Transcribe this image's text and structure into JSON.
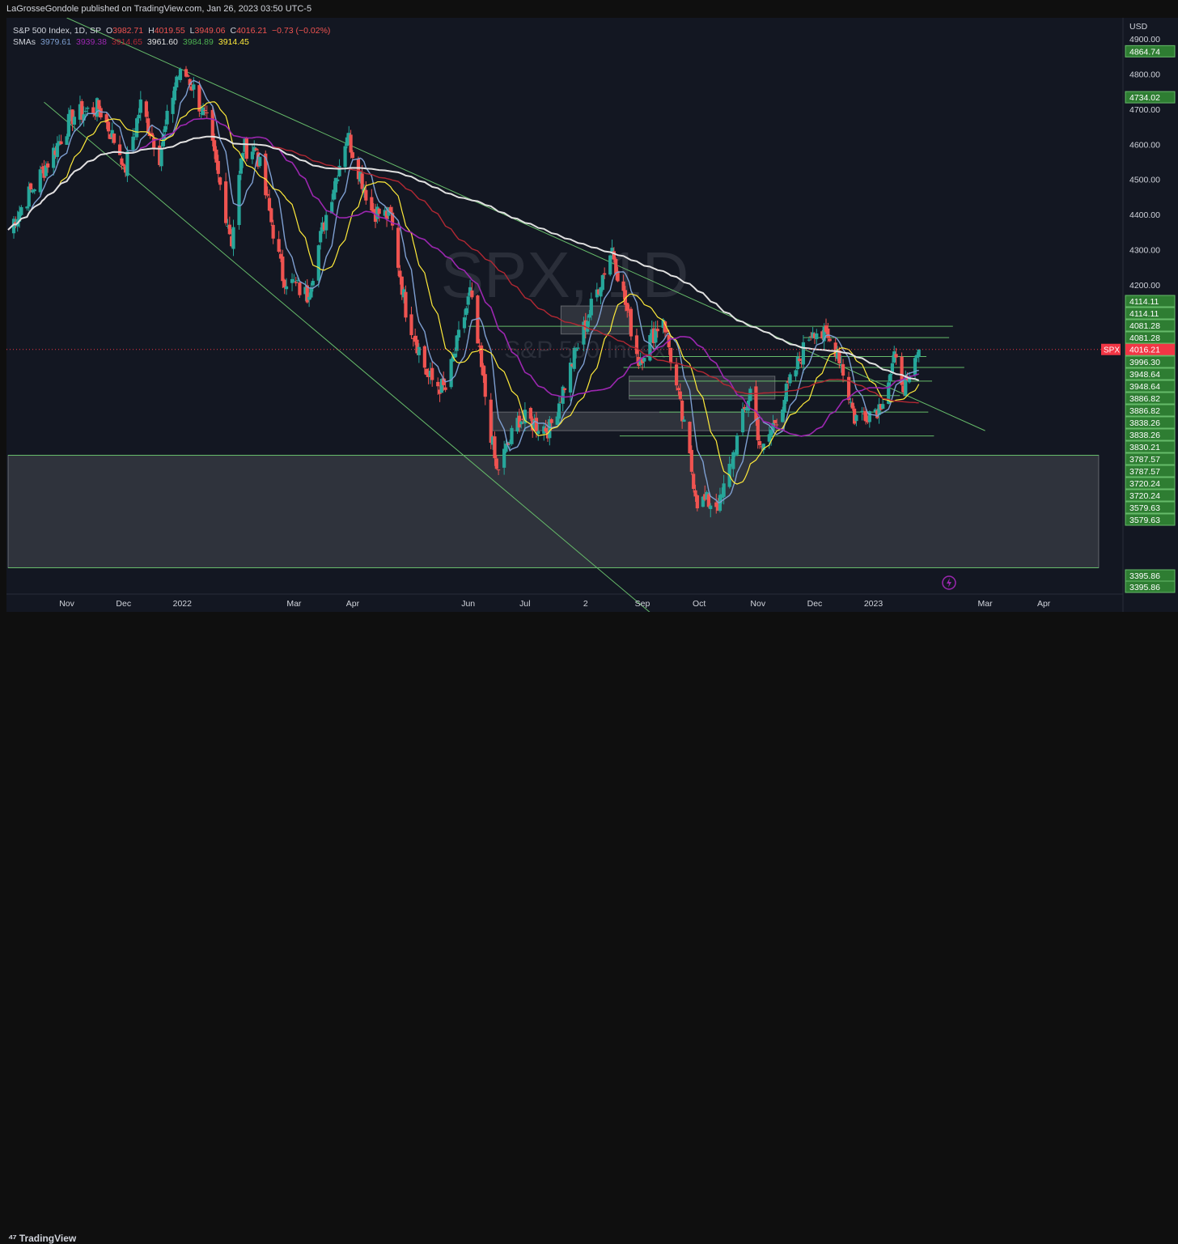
{
  "header": {
    "published": "LaGrosseGondole published on TradingView.com, Jan 26, 2023 03:50 UTC-5"
  },
  "legend": {
    "symbol": "S&P 500 Index, 1D, SP",
    "o_label": "O",
    "o": "3982.71",
    "h_label": "H",
    "h": "4019.55",
    "l_label": "L",
    "l": "3949.06",
    "c_label": "C",
    "c": "4016.21",
    "change": "−0.73 (−0.02%)",
    "sma_label": "SMAs",
    "smas": [
      "3979.61",
      "3939.38",
      "3914.65",
      "3961.60",
      "3984.89",
      "3914.45"
    ]
  },
  "watermark": {
    "big": "SPX, 1D",
    "small": "S&P 500 Index"
  },
  "footer": {
    "brand": "TradingView"
  },
  "colors": {
    "bg": "#131722",
    "up": "#26a69a",
    "down": "#ef5350",
    "sma1": "#7e9fd1",
    "sma2": "#9c27b0",
    "sma3": "#b22833",
    "sma4": "#e0e0e0",
    "sma5": "#4caf50",
    "sma6": "#ffeb3b",
    "level": "#66bb6a",
    "price_tag": "#f23645"
  },
  "chart_data": {
    "type": "candlestick",
    "currency": "USD",
    "x_labels": [
      "Nov",
      "Dec",
      "2022",
      "Mar",
      "Apr",
      "Jun",
      "Jul",
      "2",
      "Sep",
      "Oct",
      "Nov",
      "Dec",
      "2023",
      "Mar",
      "Apr"
    ],
    "y_ticks": [
      4900,
      4800,
      4700,
      4600,
      4500,
      4400,
      4300,
      4200
    ],
    "y_range": [
      3320,
      4960
    ],
    "current_price": {
      "label": "SPX",
      "value": "4016.21"
    },
    "levels": [
      "4864.74",
      "4734.02",
      "4114.11",
      "4114.11",
      "4081.28",
      "4081.28",
      "3996.30",
      "3996.30",
      "3948.64",
      "3948.64",
      "3886.82",
      "3886.82",
      "3838.26",
      "3838.26",
      "3830.21",
      "3787.57",
      "3787.57",
      "3720.24",
      "3720.24",
      "3579.63",
      "3579.63",
      "3395.86",
      "3395.86"
    ],
    "key_points": [
      {
        "d": "Oct 1 2021",
        "c": 4357
      },
      {
        "d": "Oct 20 2021",
        "c": 4530
      },
      {
        "d": "Nov 4 2021",
        "c": 4680
      },
      {
        "d": "Nov 18 2021",
        "c": 4704
      },
      {
        "d": "Nov 30 2021",
        "c": 4567
      },
      {
        "d": "Dec 1 2021",
        "c": 4513
      },
      {
        "d": "Dec 10 2021",
        "c": 4712
      },
      {
        "d": "Dec 20 2021",
        "c": 4568
      },
      {
        "d": "Dec 29 2021",
        "c": 4793
      },
      {
        "d": "Jan 4 2022",
        "c": 4796
      },
      {
        "d": "Jan 14 2022",
        "c": 4662
      },
      {
        "d": "Jan 27 2022",
        "c": 4327
      },
      {
        "d": "Feb 2 2022",
        "c": 4589
      },
      {
        "d": "Feb 9 2022",
        "c": 4587
      },
      {
        "d": "Feb 23 2022",
        "c": 4225
      },
      {
        "d": "Mar 8 2022",
        "c": 4170
      },
      {
        "d": "Mar 16 2022",
        "c": 4357
      },
      {
        "d": "Mar 29 2022",
        "c": 4632
      },
      {
        "d": "Apr 11 2022",
        "c": 4413
      },
      {
        "d": "Apr 21 2022",
        "c": 4393
      },
      {
        "d": "Apr 29 2022",
        "c": 4132
      },
      {
        "d": "May 11 2022",
        "c": 3935
      },
      {
        "d": "May 20 2022",
        "c": 3901
      },
      {
        "d": "Jun 2 2022",
        "c": 4176
      },
      {
        "d": "Jun 16 2022",
        "c": 3667
      },
      {
        "d": "Jun 28 2022",
        "c": 3821
      },
      {
        "d": "Jul 14 2022",
        "c": 3790
      },
      {
        "d": "Aug 2 2022",
        "c": 4091
      },
      {
        "d": "Aug 16 2022",
        "c": 4305
      },
      {
        "d": "Aug 30 2022",
        "c": 3986
      },
      {
        "d": "Sep 12 2022",
        "c": 4110
      },
      {
        "d": "Sep 30 2022",
        "c": 3586
      },
      {
        "d": "Oct 12 2022",
        "c": 3577
      },
      {
        "d": "Oct 28 2022",
        "c": 3901
      },
      {
        "d": "Nov 3 2022",
        "c": 3720
      },
      {
        "d": "Nov 30 2022",
        "c": 4080
      },
      {
        "d": "Dec 13 2022",
        "c": 4019
      },
      {
        "d": "Dec 22 2022",
        "c": 3822
      },
      {
        "d": "Jan 4 2023",
        "c": 3853
      },
      {
        "d": "Jan 12 2023",
        "c": 3983
      },
      {
        "d": "Jan 19 2023",
        "c": 3899
      },
      {
        "d": "Jan 25 2023",
        "c": 4016
      }
    ]
  }
}
